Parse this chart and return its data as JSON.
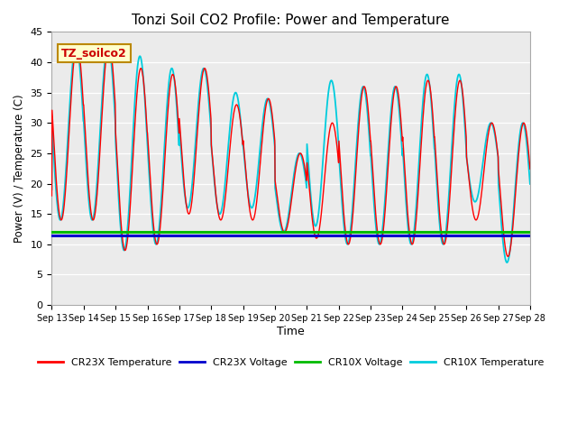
{
  "title": "Tonzi Soil CO2 Profile: Power and Temperature",
  "xlabel": "Time",
  "ylabel": "Power (V) / Temperature (C)",
  "ylim": [
    0,
    45
  ],
  "yticks": [
    0,
    5,
    10,
    15,
    20,
    25,
    30,
    35,
    40,
    45
  ],
  "x_labels": [
    "Sep 13",
    "Sep 14",
    "Sep 15",
    "Sep 16",
    "Sep 17",
    "Sep 18",
    "Sep 19",
    "Sep 20",
    "Sep 21",
    "Sep 22",
    "Sep 23",
    "Sep 24",
    "Sep 25",
    "Sep 26",
    "Sep 27",
    "Sep 28"
  ],
  "n_days": 15,
  "cr23x_voltage_value": 11.5,
  "cr10x_voltage_value": 12.0,
  "colors": {
    "cr23x_temp": "#FF0000",
    "cr23x_voltage": "#0000CC",
    "cr10x_voltage": "#00BB00",
    "cr10x_temp": "#00CCDD",
    "plot_bg": "#EBEBEB"
  },
  "legend_label_box": "TZ_soilco2",
  "cr23x_peaks": [
    43,
    43,
    39,
    38,
    39,
    33,
    34,
    25,
    30,
    36,
    36,
    37,
    37,
    30,
    30
  ],
  "cr23x_troughs": [
    14,
    14,
    9,
    10,
    15,
    14,
    14,
    12,
    11,
    10,
    10,
    10,
    10,
    14,
    8
  ],
  "cr10x_peaks": [
    43,
    43,
    41,
    39,
    39,
    35,
    34,
    25,
    37,
    36,
    36,
    38,
    38,
    30,
    30
  ],
  "cr10x_troughs": [
    14,
    14,
    9,
    10,
    16,
    15,
    16,
    12,
    13,
    10,
    10,
    10,
    10,
    17,
    7
  ]
}
